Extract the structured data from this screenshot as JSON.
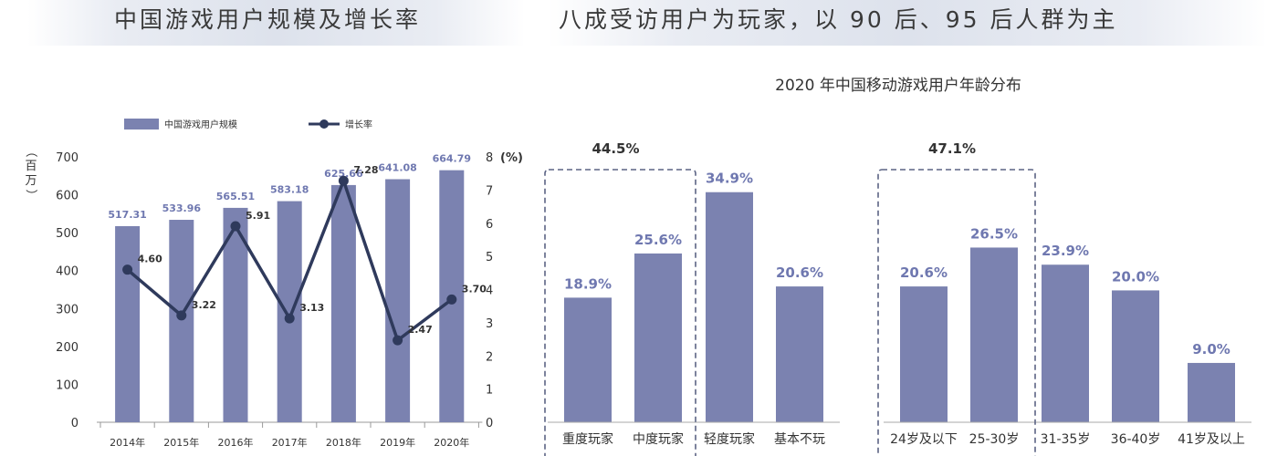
{
  "left_heading": "中国游戏用户规模及增长率",
  "right_heading": "八成受访用户为玩家，以 90 后、95 后人群为主",
  "chart_data": [
    {
      "type": "bar",
      "title": "",
      "legend": {
        "bar": "中国游戏用户规模",
        "line": "增长率",
        "placement": "top"
      },
      "categories": [
        "2014年",
        "2015年",
        "2016年",
        "2017年",
        "2018年",
        "2019年",
        "2020年"
      ],
      "series": [
        {
          "name": "中国游戏用户规模",
          "type": "bar",
          "axis": "left",
          "values": [
            517.31,
            533.96,
            565.51,
            583.18,
            625.66,
            641.08,
            664.79
          ],
          "labels": [
            "517.31",
            "533.96",
            "565.51",
            "583.18",
            "625.66",
            "641.08",
            "664.79"
          ]
        },
        {
          "name": "增长率",
          "type": "line",
          "axis": "right",
          "values": [
            4.6,
            3.22,
            5.91,
            3.13,
            7.28,
            2.47,
            3.7
          ],
          "labels": [
            "4.60",
            "3.22",
            "5.91",
            "3.13",
            "7.28",
            "2.47",
            "3.70"
          ]
        }
      ],
      "yaxis_left": {
        "label": "（百万）",
        "min": 0,
        "max": 700,
        "ticks": [
          "0",
          "100",
          "200",
          "300",
          "400",
          "500",
          "600",
          "700"
        ]
      },
      "yaxis_right": {
        "label": "(%)",
        "min": 0,
        "max": 8,
        "ticks": [
          "0",
          "1",
          "2",
          "3",
          "4",
          "5",
          "6",
          "7",
          "8"
        ]
      },
      "grid": false
    },
    {
      "type": "bar",
      "title": "2020 年中国移动游戏用户年龄分布",
      "groups": [
        {
          "categories": [
            "重度玩家",
            "中度玩家",
            "轻度玩家",
            "基本不玩"
          ],
          "values": [
            18.9,
            25.6,
            34.9,
            20.6
          ],
          "labels": [
            "18.9%",
            "25.6%",
            "34.9%",
            "20.6%"
          ],
          "bracket": {
            "covers": [
              "重度玩家",
              "中度玩家"
            ],
            "label": "44.5%"
          }
        },
        {
          "categories": [
            "24岁及以下",
            "25-30岁",
            "31-35岁",
            "36-40岁",
            "41岁及以上"
          ],
          "values": [
            20.6,
            26.5,
            23.9,
            20.0,
            9.0
          ],
          "labels": [
            "20.6%",
            "26.5%",
            "23.9%",
            "20.0%",
            "9.0%"
          ],
          "bracket": {
            "covers": [
              "24岁及以下",
              "25-30岁"
            ],
            "label": "47.1%"
          }
        }
      ],
      "ylim": [
        0,
        35
      ],
      "grid": false
    }
  ],
  "colors": {
    "bar": "#7b82b0",
    "line": "#2f3a5c",
    "label_blue": "#6f78b0",
    "text_dark": "#333333"
  }
}
